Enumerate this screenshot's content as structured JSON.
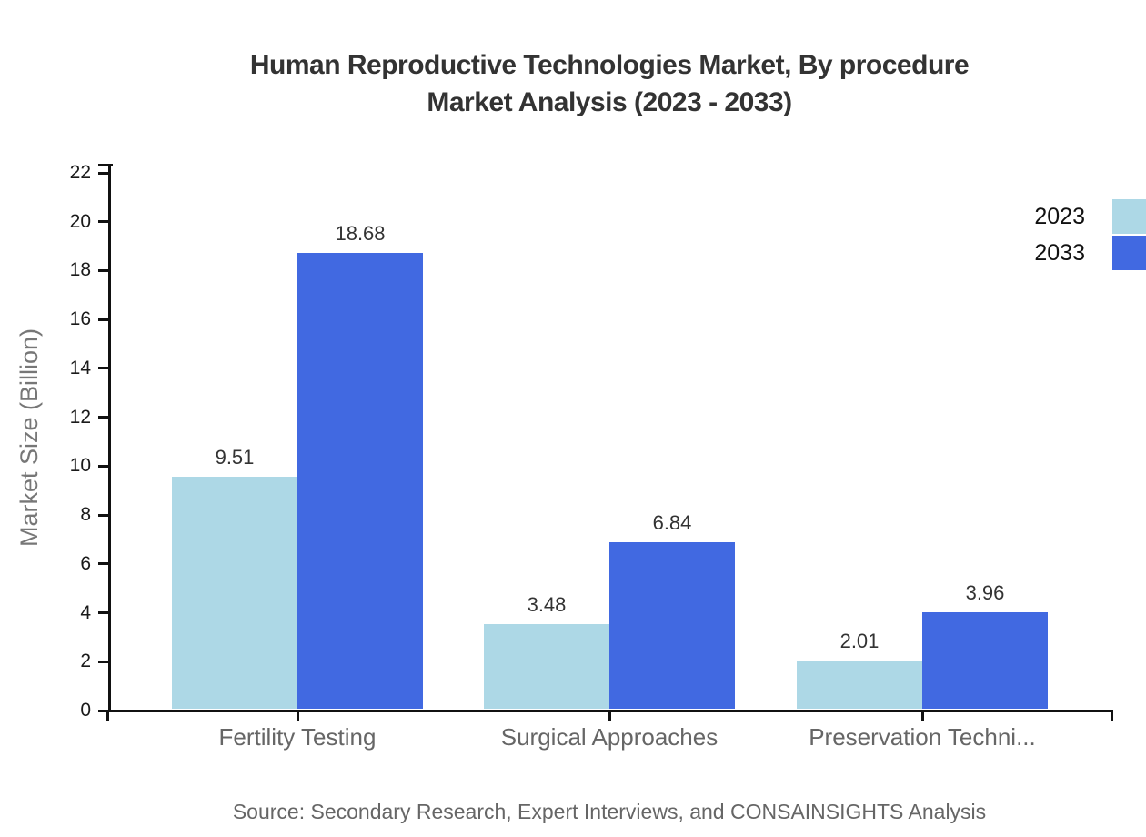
{
  "title": {
    "line1": "Human Reproductive Technologies Market, By procedure",
    "line2": "Market Analysis (2023 - 2033)"
  },
  "source": "Source: Secondary Research, Expert Interviews, and CONSAINSIGHTS Analysis",
  "chart_data": {
    "type": "bar",
    "title": "Human Reproductive Technologies Market, By procedure Market Analysis (2023 - 2033)",
    "xlabel": "",
    "ylabel": "Market Size (Billion)",
    "categories": [
      "Fertility Testing",
      "Surgical Approaches",
      "Preservation Techni..."
    ],
    "series": [
      {
        "name": "2023",
        "color": "#ADD8E6",
        "values": [
          9.51,
          3.48,
          2.01
        ]
      },
      {
        "name": "2033",
        "color": "#4169E1",
        "values": [
          18.68,
          6.84,
          3.96
        ]
      }
    ],
    "value_labels": [
      "9.51",
      "18.68",
      "3.48",
      "6.84",
      "2.01",
      "3.96"
    ],
    "ylim": [
      0,
      22
    ],
    "yticks": [
      0,
      2,
      4,
      6,
      8,
      10,
      12,
      14,
      16,
      18,
      20,
      22
    ],
    "grid": false,
    "legend_position": "top-right",
    "axis_color": "#111111",
    "label_color": "#333333",
    "tick_label_color": "#1a1a1a",
    "category_label_color": "#666666"
  }
}
